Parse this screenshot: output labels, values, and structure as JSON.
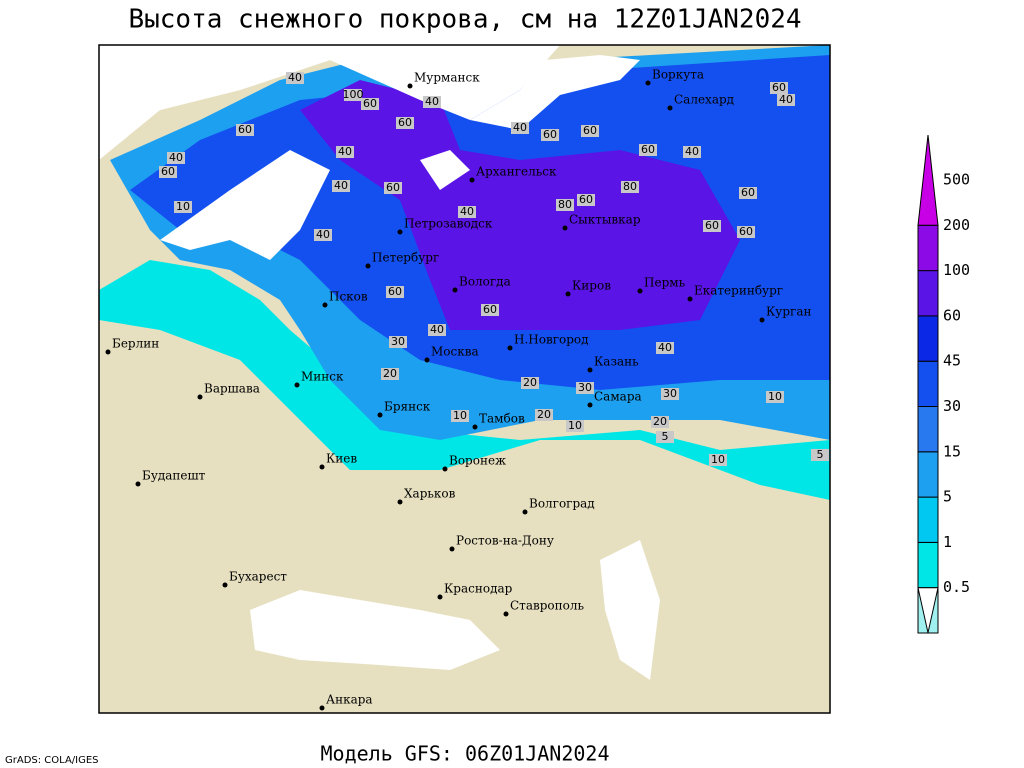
{
  "title": "Высота снежного покрова, см на 12Z01JAN2024",
  "footer": "Модель GFS: 06Z01JAN2024",
  "credit": "GrADS: COLA/IGES",
  "legend": {
    "levels": [
      0.5,
      1,
      5,
      15,
      30,
      45,
      60,
      100,
      200,
      500
    ],
    "colors": [
      "#a0f0f0",
      "#00e6e6",
      "#00c8f0",
      "#1ea0f0",
      "#2878f0",
      "#1450f0",
      "#0a28e6",
      "#5a14e6",
      "#8c0ae6",
      "#c800e6"
    ]
  },
  "cities": [
    "Мурманск",
    "Воркута",
    "Салехард",
    "Архангельск",
    "Петрозаводск",
    "Сыктывкар",
    "Петербург",
    "Вологда",
    "Киров",
    "Пермь",
    "Екатеринбург",
    "Курган",
    "Псков",
    "Берлин",
    "Н.Новгород",
    "Минск",
    "Москва",
    "Казань",
    "Варшава",
    "Брянск",
    "Тамбов",
    "Самара",
    "Киев",
    "Воронеж",
    "Харьков",
    "Волгоград",
    "Будапешт",
    "Ростов-на-Дону",
    "Бухарест",
    "Краснодар",
    "Ставрополь",
    "Анкара"
  ],
  "contour_labels": [
    40,
    100,
    60,
    40,
    60,
    40,
    60,
    60,
    40,
    60,
    60,
    40,
    60,
    40,
    40,
    60,
    80,
    60,
    80,
    40,
    60,
    60,
    40,
    60,
    60,
    40,
    60,
    30,
    40,
    20,
    20,
    10,
    20,
    10,
    30,
    20,
    10,
    5,
    10,
    5,
    40,
    60,
    30,
    10
  ]
}
